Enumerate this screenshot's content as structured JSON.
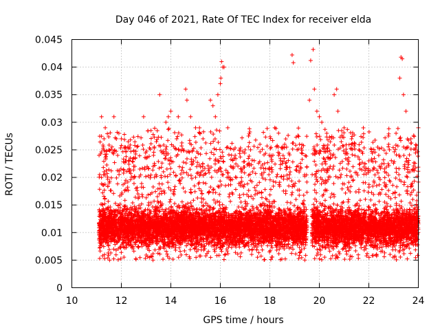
{
  "chart_data": {
    "type": "scatter",
    "title": "Day 046 of 2021, Rate Of TEC Index for receiver elda",
    "xlabel": "GPS time / hours",
    "ylabel": "ROTI / TECUs",
    "xlim": [
      10,
      24
    ],
    "ylim": [
      0,
      0.045
    ],
    "xticks": [
      10,
      12,
      14,
      16,
      18,
      20,
      22,
      24
    ],
    "xtick_labels": [
      "10",
      "12",
      "14",
      "16",
      "18",
      "20",
      "22",
      "24"
    ],
    "yticks": [
      0,
      0.005,
      0.01,
      0.015,
      0.02,
      0.025,
      0.03,
      0.035,
      0.04,
      0.045
    ],
    "ytick_labels": [
      "0",
      "0.005",
      "0.01",
      "0.015",
      "0.02",
      "0.025",
      "0.03",
      "0.035",
      "0.04",
      "0.045"
    ],
    "grid": true,
    "marker": "plus",
    "color": "#ff0000",
    "series": [
      {
        "name": "ROTI",
        "x": [
          11.1,
          11.2,
          11.3,
          11.35,
          11.5,
          11.7,
          11.8,
          11.85,
          11.9,
          12.0,
          12.2,
          12.5,
          12.9,
          13.3,
          13.55,
          13.8,
          13.9,
          14.0,
          14.3,
          14.6,
          14.65,
          14.8,
          15.0,
          15.3,
          15.6,
          15.7,
          15.8,
          15.9,
          16.0,
          16.02,
          16.05,
          16.1,
          16.15,
          16.3,
          16.6,
          17.0,
          17.3,
          17.6,
          18.2,
          18.6,
          18.9,
          18.95,
          19.2,
          19.6,
          19.65,
          19.75,
          19.8,
          19.9,
          20.0,
          20.1,
          20.3,
          20.6,
          20.7,
          20.75,
          21.0,
          21.3,
          21.6,
          22.0,
          22.4,
          22.8,
          23.1,
          23.25,
          23.3,
          23.35,
          23.4,
          23.5,
          23.7,
          23.9,
          24.0
        ],
        "y": [
          0.024,
          0.031,
          0.027,
          0.029,
          0.025,
          0.031,
          0.027,
          0.024,
          0.028,
          0.027,
          0.023,
          0.022,
          0.031,
          0.024,
          0.035,
          0.03,
          0.031,
          0.032,
          0.031,
          0.036,
          0.034,
          0.031,
          0.029,
          0.027,
          0.034,
          0.033,
          0.031,
          0.035,
          0.037,
          0.038,
          0.041,
          0.04,
          0.04,
          0.029,
          0.024,
          0.025,
          0.021,
          0.026,
          0.029,
          0.026,
          0.0422,
          0.0408,
          0.026,
          0.034,
          0.0412,
          0.0432,
          0.036,
          0.032,
          0.031,
          0.03,
          0.028,
          0.035,
          0.036,
          0.032,
          0.029,
          0.026,
          0.025,
          0.023,
          0.024,
          0.026,
          0.028,
          0.038,
          0.0418,
          0.0415,
          0.035,
          0.032,
          0.027,
          0.025,
          0.029
        ]
      }
    ],
    "bulk_distribution": {
      "segments": [
        [
          11.1,
          19.5
        ],
        [
          19.7,
          24.0
        ]
      ],
      "typical_range": [
        0.005,
        0.02
      ],
      "center": 0.011
    }
  }
}
